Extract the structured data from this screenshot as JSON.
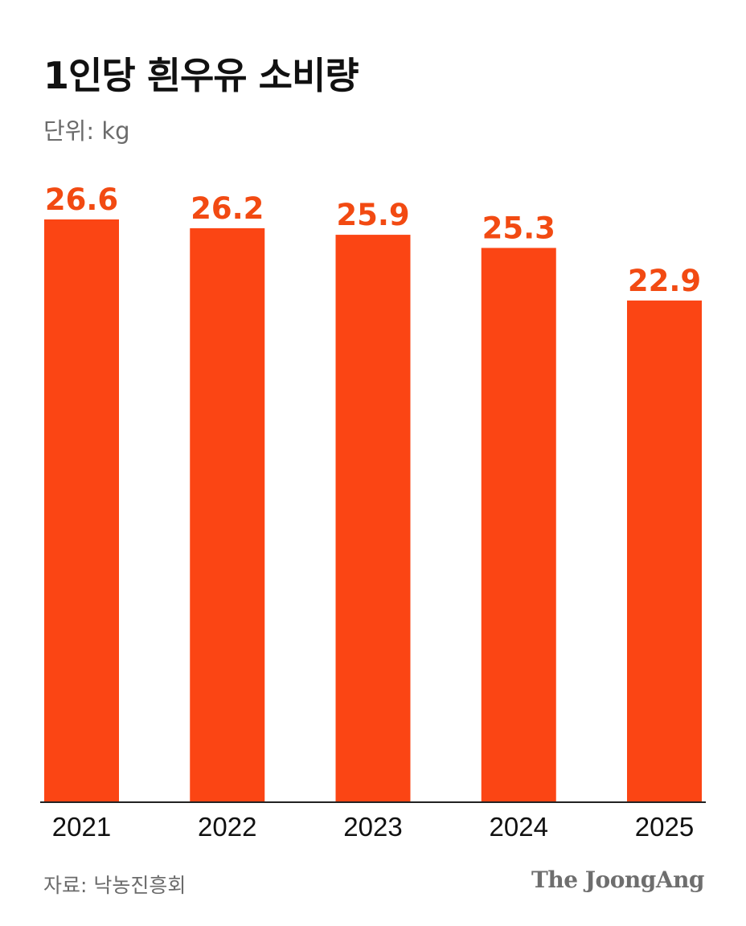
{
  "title": "1인당 흰우유 소비량",
  "subtitle": "단위: kg",
  "source": "자료: 낙농진흥회",
  "logo_text": "The JoongAng",
  "colors": {
    "bar": "#FB4514",
    "label": "#F24A12",
    "axis": "#222222",
    "tick": "#111111"
  },
  "chart_data": {
    "type": "bar",
    "categories": [
      "2021",
      "2022",
      "2023",
      "2024",
      "2025"
    ],
    "values": [
      26.6,
      26.2,
      25.9,
      25.3,
      22.9
    ],
    "value_labels": [
      "26.6",
      "26.2",
      "25.9",
      "25.3",
      "22.9"
    ],
    "title": "1인당 흰우유 소비량",
    "subtitle": "단위: kg",
    "xlabel": "",
    "ylabel": "",
    "ylim": [
      0,
      26.6
    ],
    "grid": false,
    "legend": "none"
  }
}
